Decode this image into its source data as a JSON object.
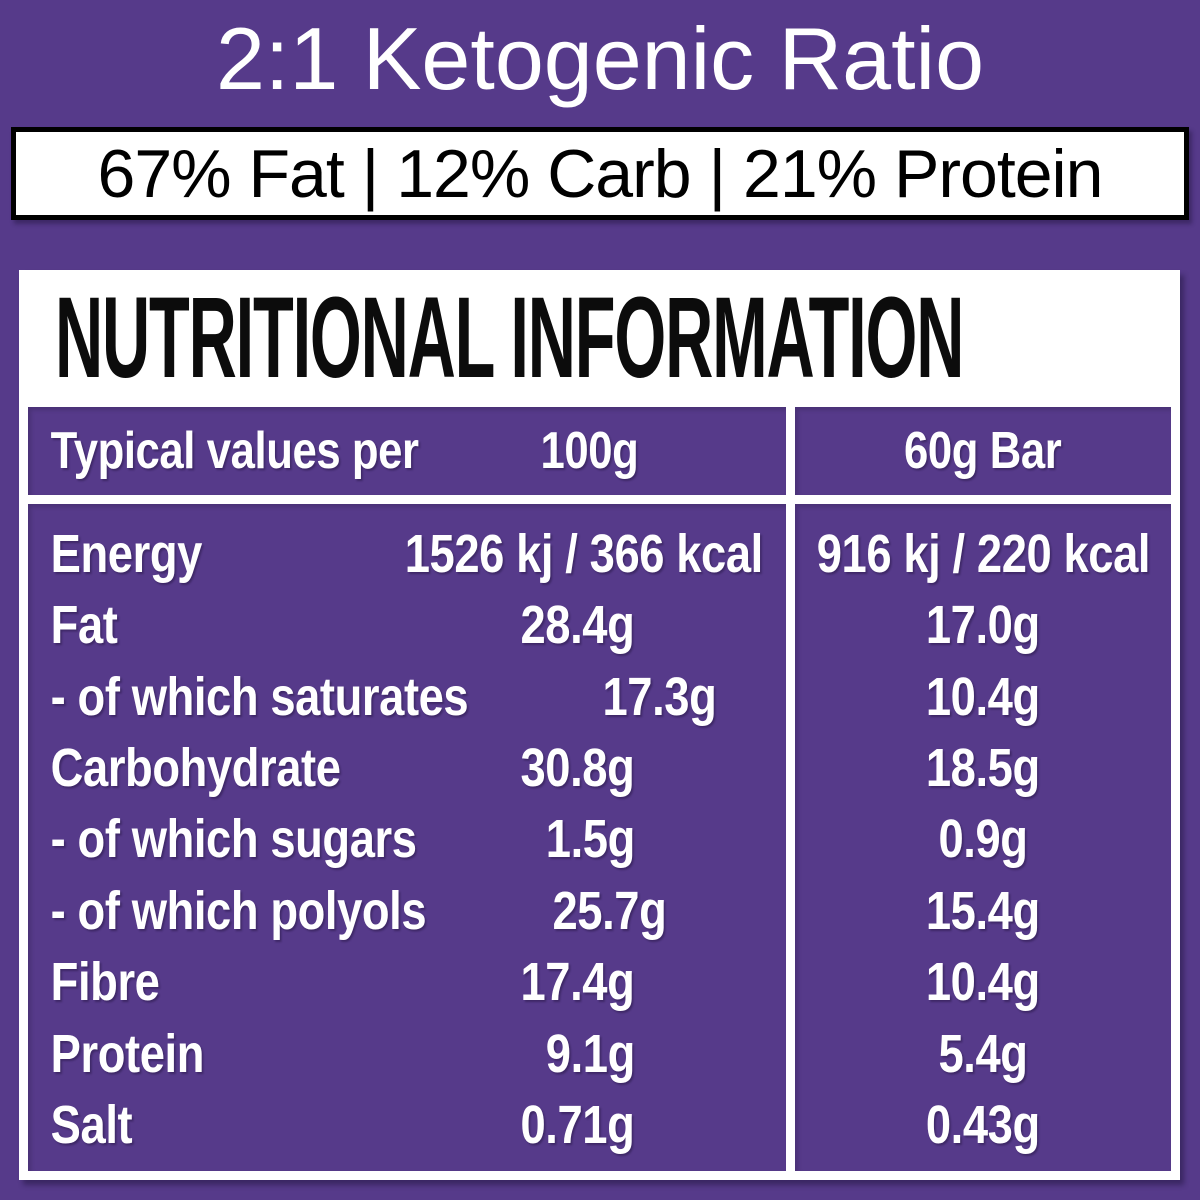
{
  "colors": {
    "background_purple": "#563a8a",
    "panel_white": "#ffffff",
    "text_black": "#000000",
    "text_white": "#ffffff"
  },
  "header": {
    "title": "2:1 Ketogenic Ratio",
    "macro_banner": "67% Fat | 12% Carb | 21% Protein"
  },
  "nutrition_panel": {
    "heading": "NUTRITIONAL INFORMATION",
    "columns": {
      "label": "Typical values per",
      "per_100g": "100g",
      "per_bar": "60g Bar"
    },
    "rows": [
      {
        "label": "Energy",
        "per_100g": "1526 kj / 366 kcal",
        "per_bar": "916 kj / 220 kcal"
      },
      {
        "label": "Fat",
        "per_100g": "28.4g",
        "per_bar": "17.0g"
      },
      {
        "label": "- of which saturates",
        "per_100g": "17.3g",
        "per_bar": "10.4g"
      },
      {
        "label": "Carbohydrate",
        "per_100g": "30.8g",
        "per_bar": "18.5g"
      },
      {
        "label": "- of which sugars",
        "per_100g": "1.5g",
        "per_bar": "0.9g"
      },
      {
        "label": "- of which polyols",
        "per_100g": "25.7g",
        "per_bar": "15.4g"
      },
      {
        "label": "Fibre",
        "per_100g": "17.4g",
        "per_bar": "10.4g"
      },
      {
        "label": "Protein",
        "per_100g": "9.1g",
        "per_bar": "5.4g"
      },
      {
        "label": "Salt",
        "per_100g": "0.71g",
        "per_bar": "0.43g"
      }
    ]
  }
}
